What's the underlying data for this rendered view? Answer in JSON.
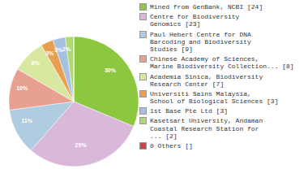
{
  "chart_data": {
    "type": "pie",
    "categories": [
      "Mined from GenBank, NCBI [24]",
      "Centre for Biodiversity\nGenomics [23]",
      "Paul Hebert Centre for DNA\nBarcoding and Biodiversity\nStudies [9]",
      "Chinese Academy of Sciences,\nMarine Biodiversity Collection... [8]",
      "Academia Sinica, Biodiversity\nResearch Center [7]",
      "Universiti Sains Malaysia,\nSchool of Biological Sciences [3]",
      "1st Base Pte Ltd [3]",
      "Kasetsart University, Andaman\nCoastal Research Station for\n... [2]",
      "0 Others []"
    ],
    "values": [
      30,
      29,
      11,
      10,
      8,
      3,
      3,
      2,
      0.001
    ],
    "value_labels": [
      "30%",
      "29%",
      "11%",
      "10%",
      "8%",
      "3%",
      "3%",
      "2%",
      null
    ],
    "colors": [
      "#8dc63f",
      "#d9b8d9",
      "#b0cce0",
      "#e8a090",
      "#d8e8a0",
      "#e8a050",
      "#a8c0e0",
      "#b0d870",
      "#cc4444"
    ],
    "legend": "right",
    "data_labels": true
  }
}
